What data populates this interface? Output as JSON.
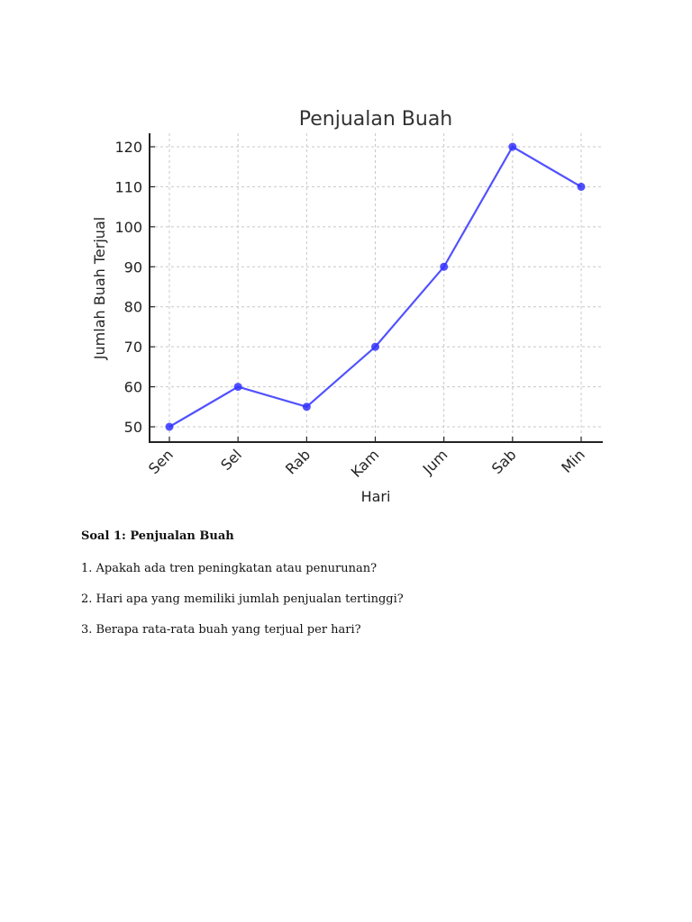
{
  "chart_data": {
    "type": "line",
    "title": "Penjualan Buah",
    "xlabel": "Hari",
    "ylabel": "Jumlah Buah Terjual",
    "categories": [
      "Sen",
      "Sel",
      "Rab",
      "Kam",
      "Jum",
      "Sab",
      "Min"
    ],
    "values": [
      50,
      60,
      55,
      70,
      90,
      120,
      110
    ],
    "yticks": [
      50,
      60,
      70,
      80,
      90,
      100,
      110,
      120
    ],
    "ylim": [
      46.5,
      123.5
    ],
    "grid": true,
    "legend": null,
    "color": "#3333ff",
    "marker": "circle"
  },
  "document": {
    "heading": "Soal 1: Penjualan Buah",
    "questions": [
      "1. Apakah ada tren peningkatan atau penurunan?",
      "2. Hari apa yang memiliki jumlah penjualan tertinggi?",
      "3. Berapa rata-rata buah yang terjual per hari?"
    ]
  }
}
